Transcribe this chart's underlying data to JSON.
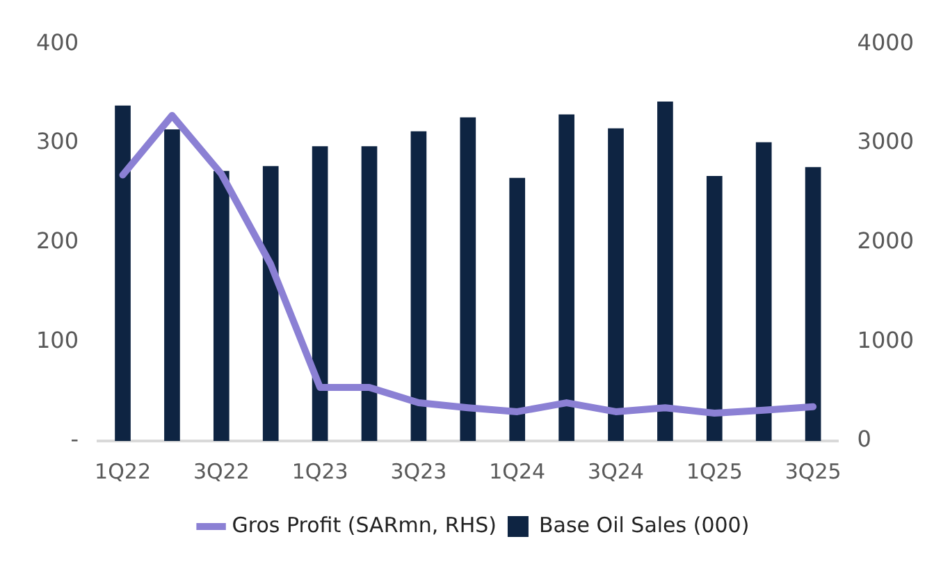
{
  "chart_data": {
    "type": "bar",
    "categories": [
      "1Q22",
      null,
      "3Q22",
      null,
      "1Q23",
      null,
      "3Q23",
      null,
      "1Q24",
      null,
      "3Q24",
      null,
      "1Q25",
      null,
      "3Q25"
    ],
    "series": [
      {
        "name": "Base Oil Sales (000)",
        "color": "#0e2442",
        "values": [
          338,
          314,
          272,
          277,
          297,
          297,
          312,
          326,
          265,
          329,
          315,
          342,
          267,
          301,
          276
        ]
      },
      {
        "name": "Gros Profit (SARmn, RHS)",
        "color": "#8b80d4",
        "type": "line",
        "axis": "y2",
        "values": [
          2680,
          3280,
          2690,
          1780,
          540,
          540,
          385,
          335,
          295,
          385,
          295,
          335,
          280,
          310,
          345
        ]
      }
    ],
    "ylim": [
      0,
      400
    ],
    "yticks": [
      {
        "value": 0,
        "label": "-"
      },
      100,
      200,
      300,
      400
    ],
    "y2lim": [
      0,
      4000
    ],
    "y2ticks": [
      0,
      1000,
      2000,
      3000,
      4000
    ],
    "grid": false,
    "legend": "bottom",
    "marker": "none"
  }
}
